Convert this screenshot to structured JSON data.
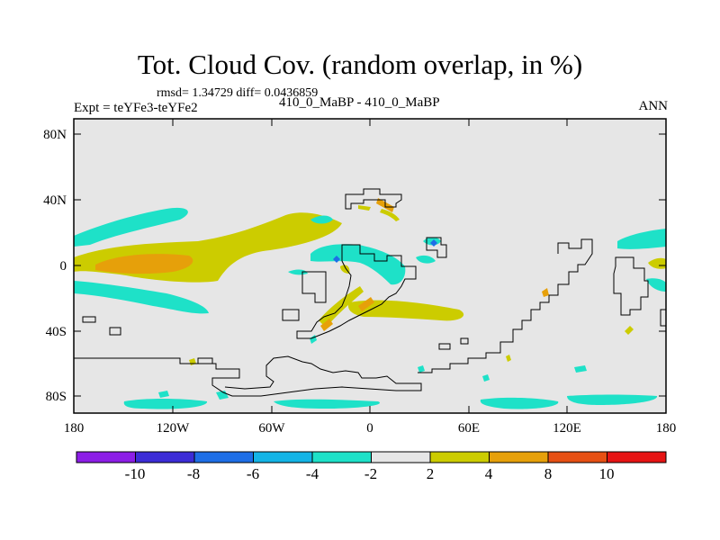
{
  "header": {
    "title": "Tot. Cloud Cov. (random overlap, in %)",
    "stats": "rmsd= 1.34729 diff= 0.0436859",
    "experiment": "Expt = teYFe3-teYFe2",
    "case": "410_0_MaBP - 410_0_MaBP",
    "season": "ANN"
  },
  "axes": {
    "y_ticks": [
      "80N",
      "40N",
      "0",
      "40S",
      "80S"
    ],
    "x_ticks": [
      "180",
      "120W",
      "60W",
      "0",
      "60E",
      "120E",
      "180"
    ]
  },
  "colorbar": {
    "labels": [
      "-10",
      "-8",
      "-6",
      "-4",
      "-2",
      "2",
      "4",
      "8",
      "10"
    ],
    "colors": [
      "#8c1ee6",
      "#3c2cd6",
      "#1e6ee6",
      "#14b4e6",
      "#1ee1c8",
      "#e6e6e6",
      "#cccc00",
      "#e6a00a",
      "#e65014",
      "#e61414"
    ]
  },
  "chart_data": {
    "type": "heatmap",
    "title": "Tot. Cloud Cov. (random overlap, in %)",
    "xlim": [
      -180,
      180
    ],
    "ylim": [
      -90,
      90
    ],
    "levels": [
      -10,
      -8,
      -6,
      -4,
      -2,
      2,
      4,
      8,
      10
    ],
    "background_color": "#e6e6e6"
  }
}
